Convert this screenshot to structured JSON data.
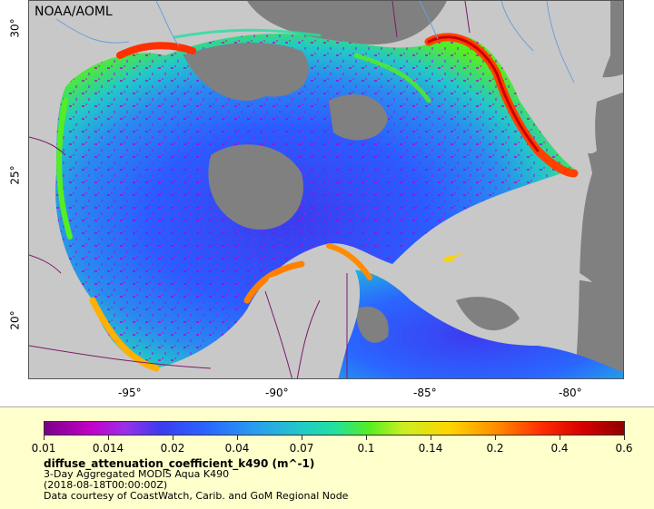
{
  "map": {
    "credit": "NOAA/AOML",
    "lon_ticks": [
      "-95°",
      "-90°",
      "-85°",
      "-80°"
    ],
    "lat_ticks": [
      "30°",
      "25°",
      "20°"
    ],
    "colors": {
      "land": "#c8c8c8",
      "no_data": "#808080",
      "coast": "#ff3000",
      "open_water": "#2a55ff",
      "boundaries": "#7a1a6a",
      "rivers": "#6aa0d8"
    }
  },
  "legend": {
    "colorbar_ticks": [
      "0.01",
      "0.014",
      "0.02",
      "0.04",
      "0.07",
      "0.1",
      "0.14",
      "0.2",
      "0.4",
      "0.6"
    ],
    "variable": "diffuse_attenuation_coefficient_k490 (m^-1)",
    "product": "3-Day Aggregated MODIS Aqua K490",
    "date": "(2018-08-18T00:00:00Z)",
    "courtesy": "Data courtesy of CoastWatch, Carib. and GoM Regional Node"
  }
}
